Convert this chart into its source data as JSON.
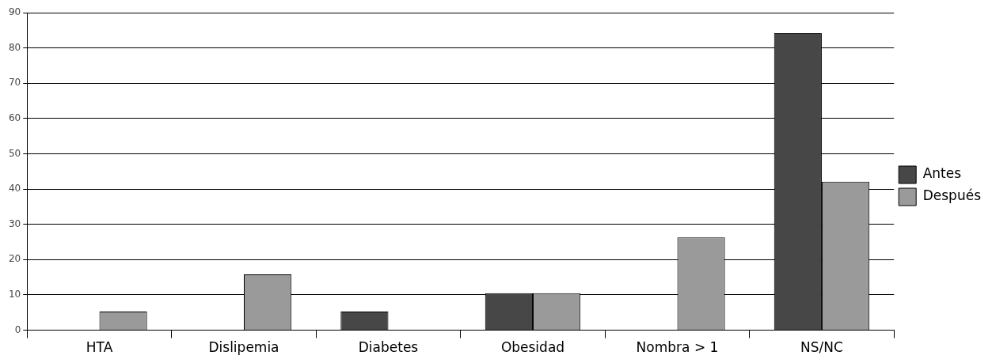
{
  "chart_data": {
    "type": "bar",
    "categories": [
      "HTA",
      "Dislipemia",
      "Diabetes",
      "Obesidad",
      "Nombra > 1",
      "NS/NC"
    ],
    "series": [
      {
        "name": "Antes",
        "color": "#474747",
        "values": [
          0,
          0,
          5.3,
          10.5,
          0,
          84.2
        ]
      },
      {
        "name": "Después",
        "color": "#9a9a9a",
        "values": [
          5.3,
          15.8,
          0,
          10.5,
          26.3,
          42.1
        ]
      }
    ],
    "ylim": [
      0,
      90
    ],
    "yticks": [
      0,
      10,
      20,
      30,
      40,
      50,
      60,
      70,
      80,
      90
    ],
    "grid": "y",
    "legend": "right"
  }
}
